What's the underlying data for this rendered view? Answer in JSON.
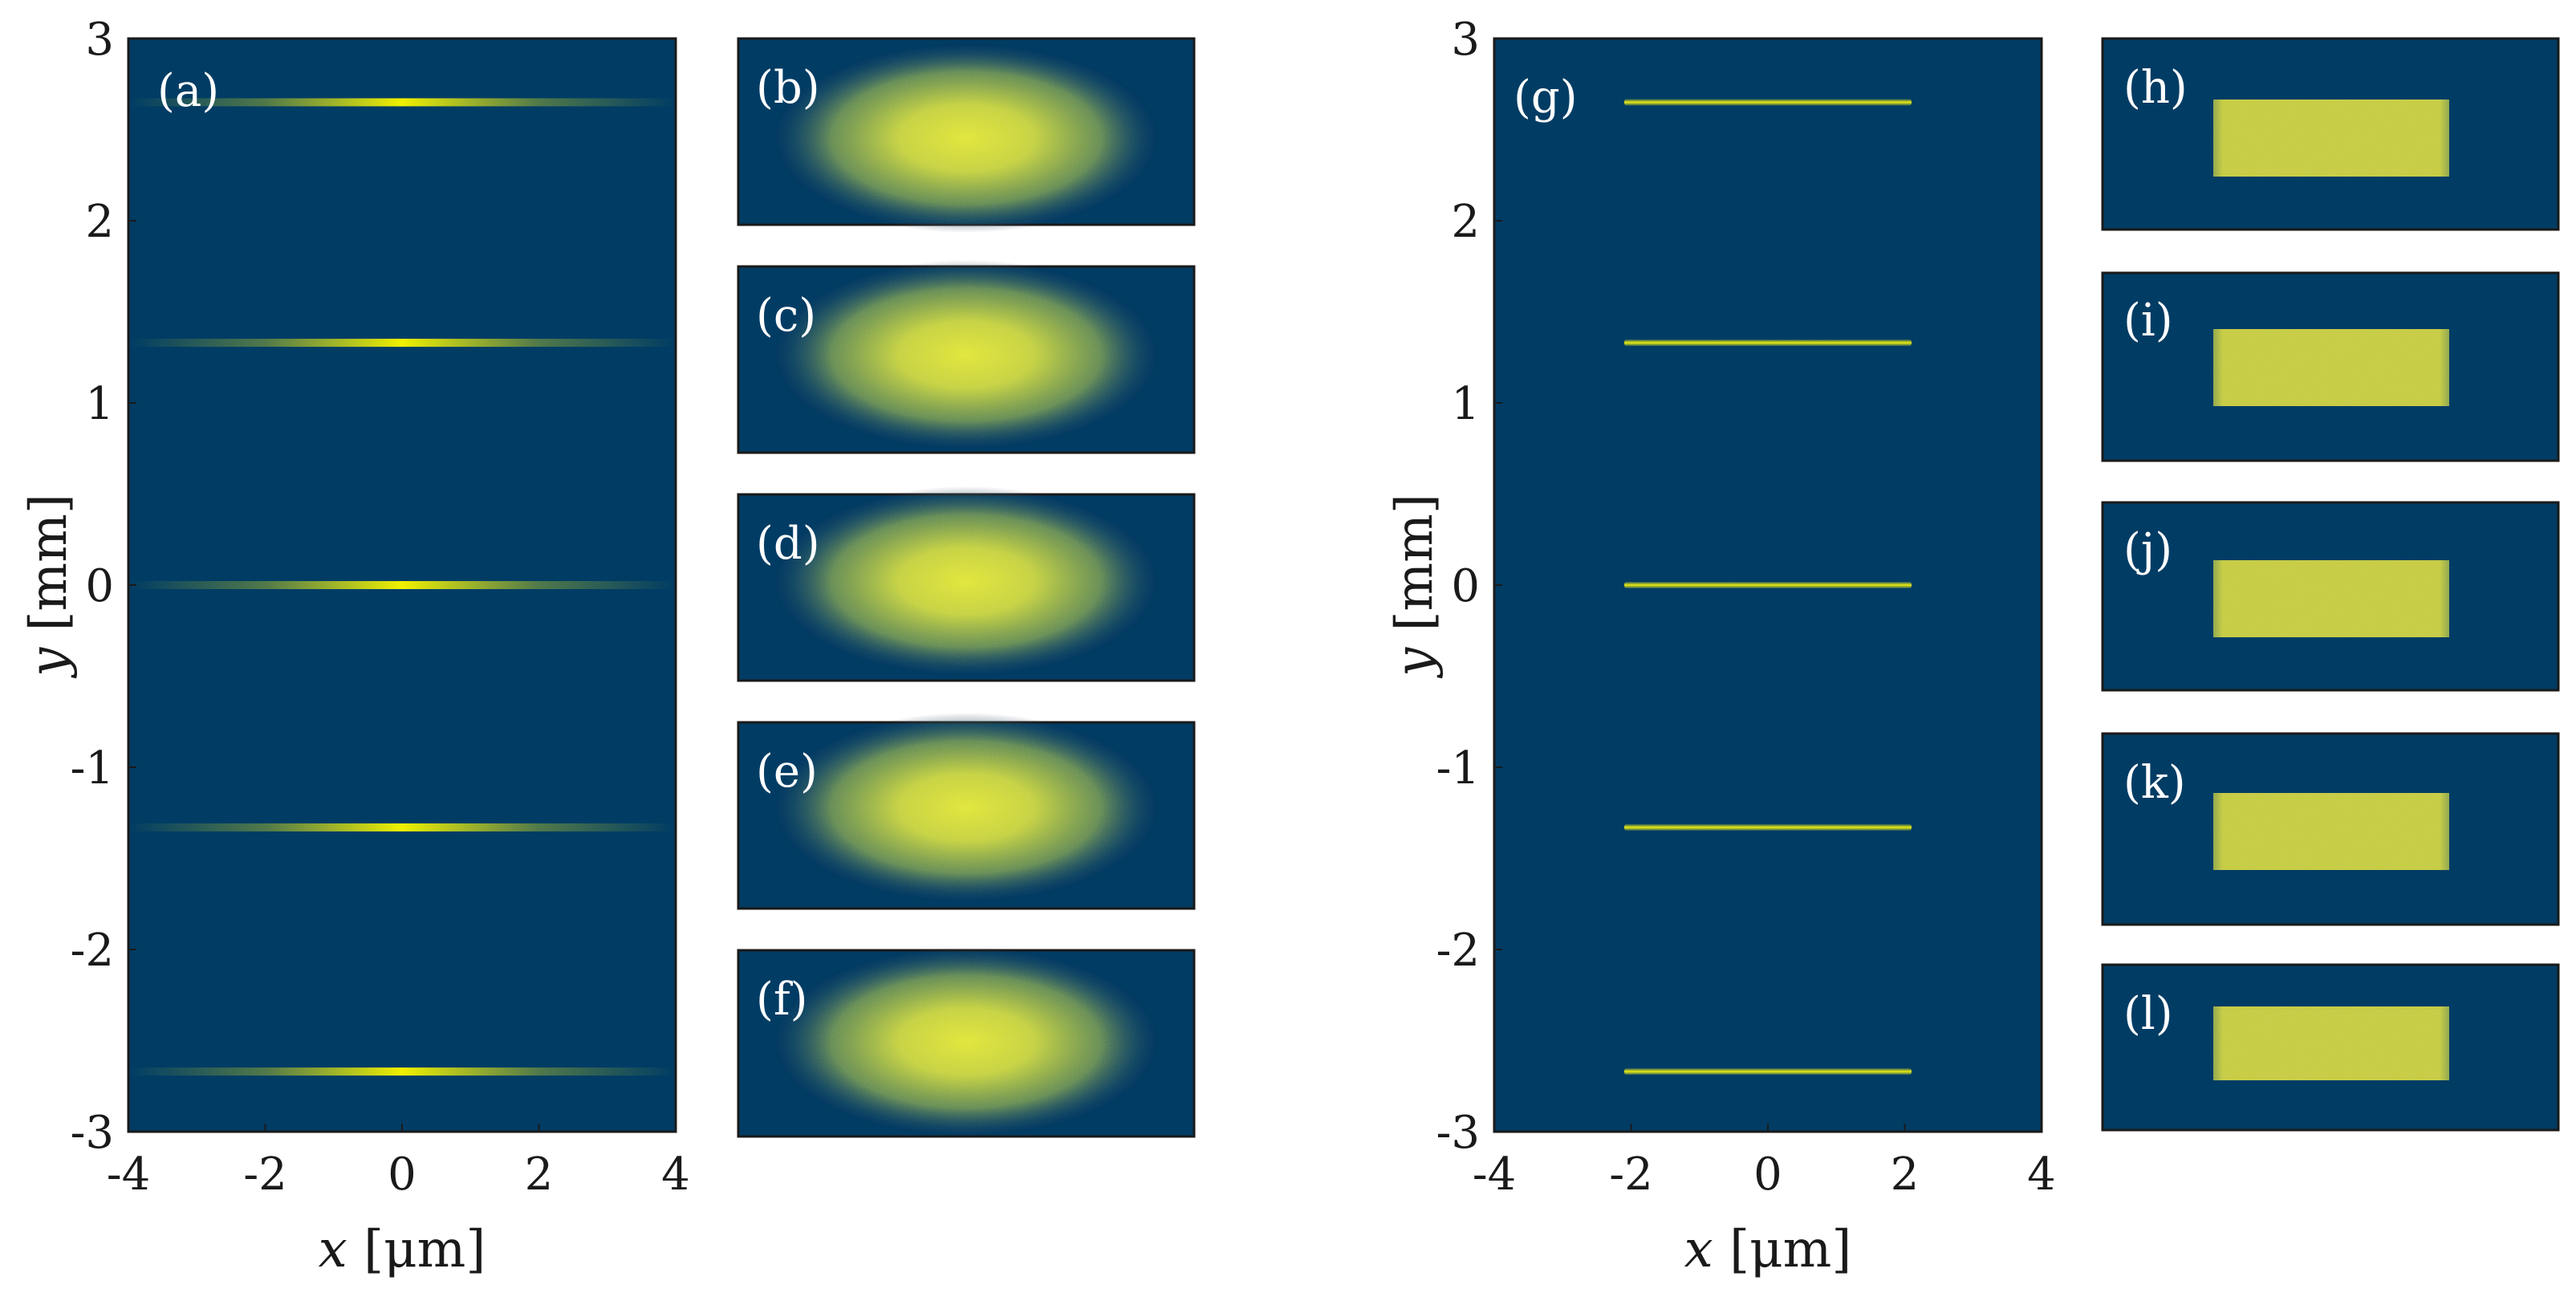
{
  "colors": {
    "background": "#003c64",
    "highlight": "#e6ea1a",
    "frame": "#1a1a1a"
  },
  "chart_data": [
    {
      "id": "a",
      "type": "heatmap",
      "panel_label": "(a)",
      "xlabel_var": "x",
      "xlabel_unit": " [μm]",
      "ylabel_var": "y",
      "ylabel_unit": " [mm]",
      "xlim": [
        -4,
        4
      ],
      "ylim": [
        -3,
        3
      ],
      "xticks": [
        -4,
        -2,
        0,
        2,
        4
      ],
      "yticks": [
        3,
        2,
        1,
        0,
        -1,
        -2,
        -3
      ],
      "line_profile": "gaussian",
      "lines": [
        {
          "y": 2.65,
          "x_center": 0,
          "x_extent": [
            -4,
            4
          ]
        },
        {
          "y": 1.33,
          "x_center": 0,
          "x_extent": [
            -4,
            4
          ]
        },
        {
          "y": 0.0,
          "x_center": 0,
          "x_extent": [
            -4,
            4
          ]
        },
        {
          "y": -1.33,
          "x_center": 0,
          "x_extent": [
            -4,
            4
          ]
        },
        {
          "y": -2.67,
          "x_center": 0,
          "x_extent": [
            -4,
            4
          ]
        }
      ]
    },
    {
      "id": "g",
      "type": "heatmap",
      "panel_label": "(g)",
      "xlabel_var": "x",
      "xlabel_unit": " [μm]",
      "ylabel_var": "y",
      "ylabel_unit": " [mm]",
      "xlim": [
        -4,
        4
      ],
      "ylim": [
        -3,
        3
      ],
      "xticks": [
        -4,
        -2,
        0,
        2,
        4
      ],
      "yticks": [
        3,
        2,
        1,
        0,
        -1,
        -2,
        -3
      ],
      "line_profile": "flat-top",
      "lines": [
        {
          "y": 2.65,
          "x_center": 0,
          "x_extent": [
            -2.1,
            2.1
          ]
        },
        {
          "y": 1.33,
          "x_center": 0,
          "x_extent": [
            -2.1,
            2.1
          ]
        },
        {
          "y": 0.0,
          "x_center": 0,
          "x_extent": [
            -2.1,
            2.1
          ]
        },
        {
          "y": -1.33,
          "x_center": 0,
          "x_extent": [
            -2.1,
            2.1
          ]
        },
        {
          "y": -2.67,
          "x_center": 0,
          "x_extent": [
            -2.1,
            2.1
          ]
        }
      ]
    }
  ],
  "insets": {
    "gaussian_spots": [
      "(b)",
      "(c)",
      "(d)",
      "(e)",
      "(f)"
    ],
    "flat_top_spots": [
      "(h)",
      "(i)",
      "(j)",
      "(k)",
      "(l)"
    ]
  }
}
